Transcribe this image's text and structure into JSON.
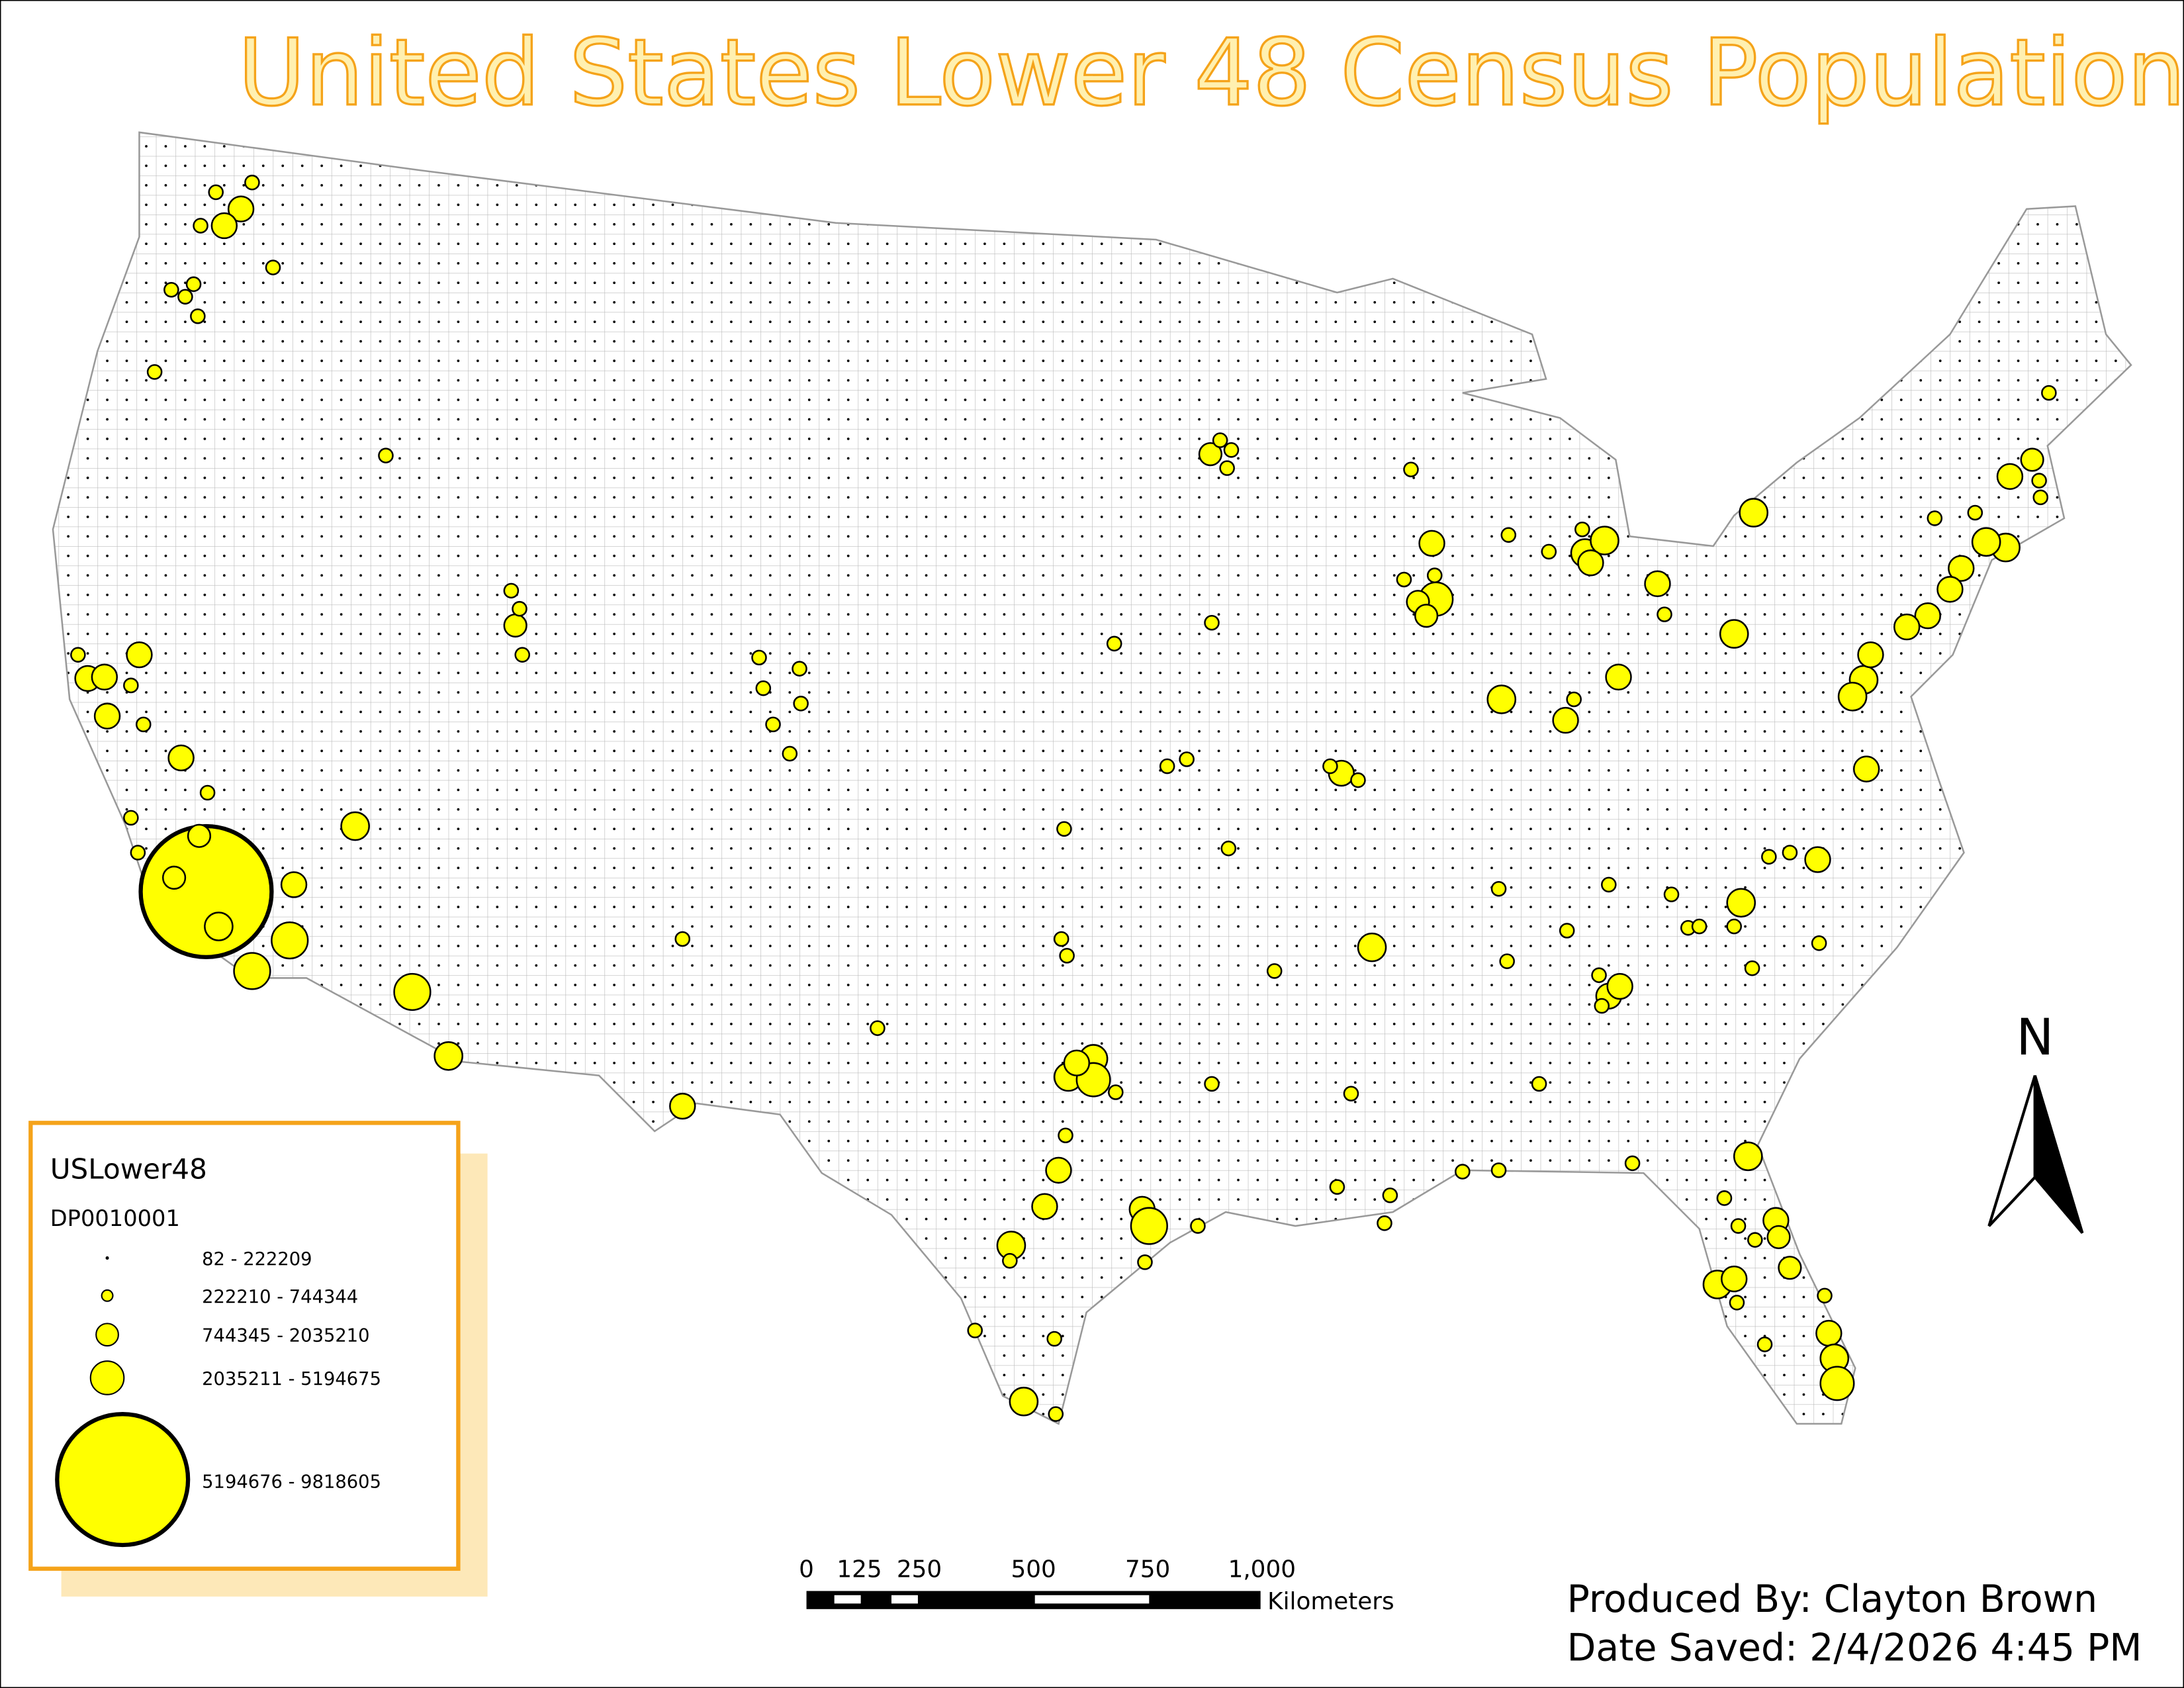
{
  "title": "United States Lower 48 Census Population",
  "legend": {
    "title": "USLower48",
    "field": "DP0010001",
    "classes": [
      "82 - 222209",
      "222210 - 744344",
      "744345 - 2035210",
      "2035211 - 5194675",
      "5194676 - 9818605"
    ]
  },
  "scale_bar": {
    "labels": [
      "0",
      "125",
      "250",
      "500",
      "750",
      "1,000"
    ],
    "unit": "Kilometers"
  },
  "north_arrow": "N",
  "credits": {
    "produced_by": "Produced By: Clayton Brown",
    "date_saved": "Date Saved: 2/4/2026 4:45 PM"
  }
}
